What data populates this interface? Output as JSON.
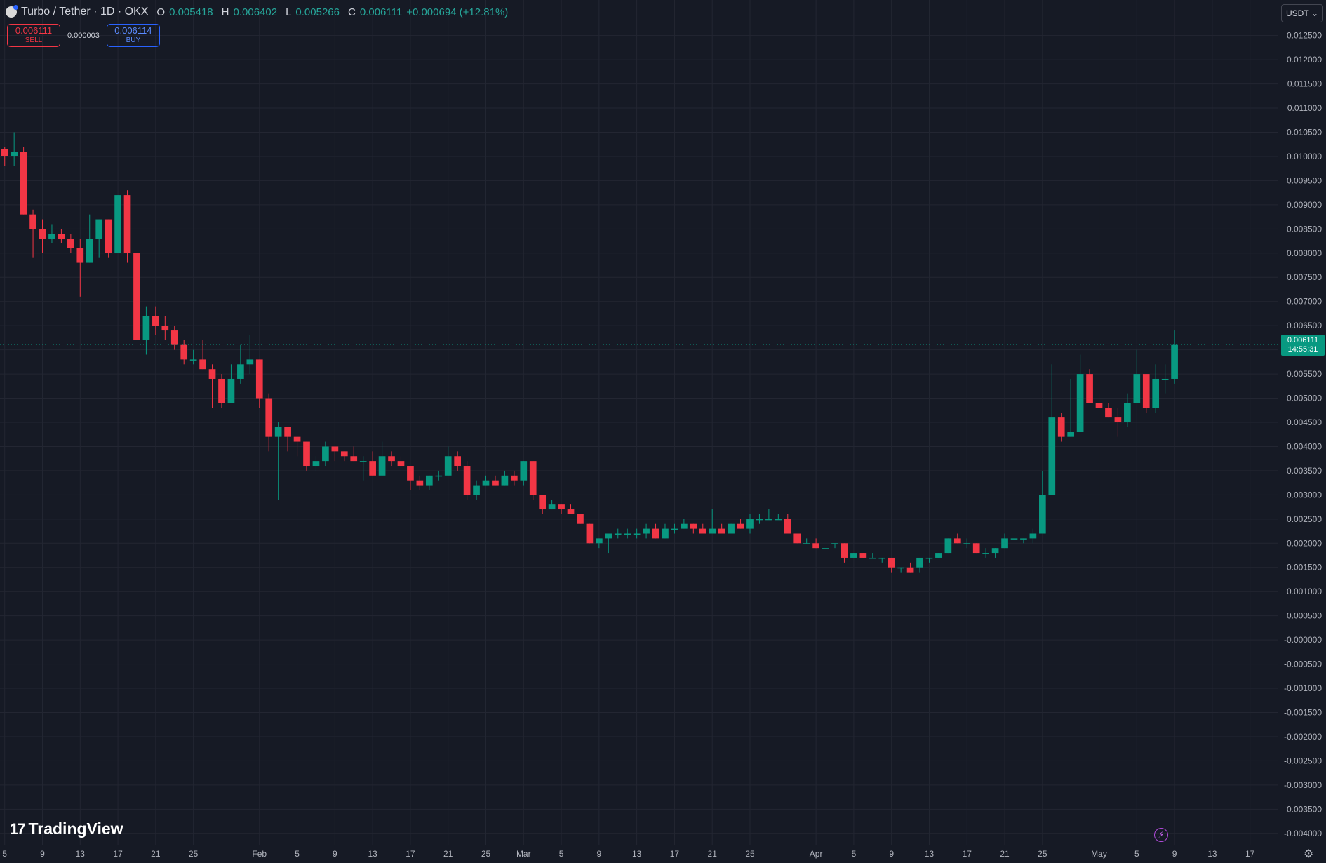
{
  "legend": {
    "symbol": "Turbo / Tether · 1D · OKX",
    "open_label": "O",
    "open": "0.005418",
    "high_label": "H",
    "high": "0.006402",
    "low_label": "L",
    "low": "0.005266",
    "close_label": "C",
    "close": "0.006111",
    "change": "+0.000694 (+12.81%)"
  },
  "trade": {
    "sell_price": "0.006111",
    "sell_label": "SELL",
    "spread": "0.000003",
    "buy_price": "0.006114",
    "buy_label": "BUY"
  },
  "currency": "USDT",
  "last_price": {
    "value": "0.006111",
    "countdown": "14:55:31"
  },
  "brand": "TradingView",
  "colors": {
    "up": "#089981",
    "down": "#f23645",
    "background": "#161a25",
    "grid": "#232632",
    "axis_text": "#b2b5be"
  },
  "chart_data": {
    "type": "candlestick",
    "y_ticks": [
      "0.012500",
      "0.012000",
      "0.011500",
      "0.011000",
      "0.010500",
      "0.010000",
      "0.009500",
      "0.009000",
      "0.008500",
      "0.008000",
      "0.007500",
      "0.007000",
      "0.006500",
      "0.006000",
      "0.005500",
      "0.005000",
      "0.004500",
      "0.004000",
      "0.003500",
      "0.003000",
      "0.002500",
      "0.002000",
      "0.001500",
      "0.001000",
      "0.000500",
      "-0.000000",
      "-0.000500",
      "-0.001000",
      "-0.001500",
      "-0.002000",
      "-0.002500",
      "-0.003000",
      "-0.003500",
      "-0.004000"
    ],
    "ylim": [
      -0.00425,
      0.0128
    ],
    "x_ticks": [
      {
        "label": "5",
        "day": 4
      },
      {
        "label": "9",
        "day": 8
      },
      {
        "label": "13",
        "day": 12
      },
      {
        "label": "17",
        "day": 16
      },
      {
        "label": "21",
        "day": 20
      },
      {
        "label": "25",
        "day": 24
      },
      {
        "label": "Feb",
        "day": 31
      },
      {
        "label": "5",
        "day": 35
      },
      {
        "label": "9",
        "day": 39
      },
      {
        "label": "13",
        "day": 43
      },
      {
        "label": "17",
        "day": 47
      },
      {
        "label": "21",
        "day": 51
      },
      {
        "label": "25",
        "day": 55
      },
      {
        "label": "Mar",
        "day": 59
      },
      {
        "label": "5",
        "day": 63
      },
      {
        "label": "9",
        "day": 67
      },
      {
        "label": "13",
        "day": 71
      },
      {
        "label": "17",
        "day": 75
      },
      {
        "label": "21",
        "day": 79
      },
      {
        "label": "25",
        "day": 83
      },
      {
        "label": "Apr",
        "day": 90
      },
      {
        "label": "5",
        "day": 94
      },
      {
        "label": "9",
        "day": 98
      },
      {
        "label": "13",
        "day": 102
      },
      {
        "label": "17",
        "day": 106
      },
      {
        "label": "21",
        "day": 110
      },
      {
        "label": "25",
        "day": 114
      },
      {
        "label": "May",
        "day": 120
      },
      {
        "label": "5",
        "day": 124
      },
      {
        "label": "9",
        "day": 128
      },
      {
        "label": "13",
        "day": 132
      },
      {
        "label": "17",
        "day": 136
      }
    ],
    "x_range": [
      3.5,
      139
    ],
    "start_day": 4,
    "candles": [
      [
        0.01015,
        0.0102,
        0.0098,
        0.01
      ],
      [
        0.01,
        0.0105,
        0.0098,
        0.0101
      ],
      [
        0.0101,
        0.0102,
        0.0088,
        0.0088
      ],
      [
        0.0088,
        0.0089,
        0.0079,
        0.0085
      ],
      [
        0.0085,
        0.0087,
        0.008,
        0.0083
      ],
      [
        0.0083,
        0.0086,
        0.0082,
        0.0084
      ],
      [
        0.0084,
        0.0085,
        0.0082,
        0.0083
      ],
      [
        0.0083,
        0.0084,
        0.008,
        0.0081
      ],
      [
        0.0081,
        0.0083,
        0.0071,
        0.0078
      ],
      [
        0.0078,
        0.0088,
        0.0078,
        0.0083
      ],
      [
        0.0083,
        0.0087,
        0.0079,
        0.0087
      ],
      [
        0.0087,
        0.0087,
        0.0079,
        0.008
      ],
      [
        0.008,
        0.0092,
        0.008,
        0.0092
      ],
      [
        0.0092,
        0.0093,
        0.0078,
        0.008
      ],
      [
        0.008,
        0.008,
        0.0062,
        0.0062
      ],
      [
        0.0062,
        0.0069,
        0.0059,
        0.0067
      ],
      [
        0.0067,
        0.0069,
        0.0063,
        0.0065
      ],
      [
        0.0065,
        0.0067,
        0.0062,
        0.0064
      ],
      [
        0.0064,
        0.0065,
        0.006,
        0.0061
      ],
      [
        0.0061,
        0.0062,
        0.0057,
        0.0058
      ],
      [
        0.0058,
        0.006,
        0.0057,
        0.0058
      ],
      [
        0.0058,
        0.0062,
        0.0056,
        0.0056
      ],
      [
        0.0056,
        0.0057,
        0.0048,
        0.0054
      ],
      [
        0.0054,
        0.0055,
        0.0048,
        0.0049
      ],
      [
        0.0049,
        0.0057,
        0.0049,
        0.0054
      ],
      [
        0.0054,
        0.0061,
        0.0053,
        0.0057
      ],
      [
        0.0057,
        0.0063,
        0.0055,
        0.0058
      ],
      [
        0.0058,
        0.0058,
        0.0048,
        0.005
      ],
      [
        0.005,
        0.0051,
        0.0039,
        0.0042
      ],
      [
        0.0042,
        0.0045,
        0.0029,
        0.0044
      ],
      [
        0.0044,
        0.0044,
        0.0039,
        0.0042
      ],
      [
        0.0042,
        0.0041,
        0.0038,
        0.0041
      ],
      [
        0.0041,
        0.004,
        0.0035,
        0.0036
      ],
      [
        0.0036,
        0.0038,
        0.0035,
        0.0037
      ],
      [
        0.0037,
        0.0041,
        0.0036,
        0.004
      ],
      [
        0.004,
        0.004,
        0.0037,
        0.0039
      ],
      [
        0.0039,
        0.0039,
        0.0037,
        0.0038
      ],
      [
        0.0038,
        0.004,
        0.0037,
        0.0037
      ],
      [
        0.0037,
        0.0038,
        0.0033,
        0.0037
      ],
      [
        0.0037,
        0.0039,
        0.0034,
        0.0034
      ],
      [
        0.0034,
        0.0041,
        0.0034,
        0.0038
      ],
      [
        0.0038,
        0.0039,
        0.0036,
        0.0037
      ],
      [
        0.0037,
        0.0038,
        0.0036,
        0.0036
      ],
      [
        0.0036,
        0.0036,
        0.0031,
        0.0033
      ],
      [
        0.0033,
        0.0034,
        0.0031,
        0.0032
      ],
      [
        0.0032,
        0.0034,
        0.0031,
        0.0034
      ],
      [
        0.0034,
        0.0035,
        0.0033,
        0.0034
      ],
      [
        0.0034,
        0.004,
        0.0034,
        0.0038
      ],
      [
        0.0038,
        0.0039,
        0.0035,
        0.0036
      ],
      [
        0.0036,
        0.0037,
        0.0029,
        0.003
      ],
      [
        0.003,
        0.0033,
        0.0029,
        0.0032
      ],
      [
        0.0032,
        0.0034,
        0.0032,
        0.0033
      ],
      [
        0.0033,
        0.0034,
        0.0032,
        0.0032
      ],
      [
        0.0032,
        0.0035,
        0.0032,
        0.0034
      ],
      [
        0.0034,
        0.0035,
        0.0032,
        0.0033
      ],
      [
        0.0033,
        0.0037,
        0.0032,
        0.0037
      ],
      [
        0.0037,
        0.0037,
        0.0029,
        0.003
      ],
      [
        0.003,
        0.003,
        0.0026,
        0.0027
      ],
      [
        0.0027,
        0.0029,
        0.0027,
        0.0028
      ],
      [
        0.0028,
        0.0028,
        0.0026,
        0.0027
      ],
      [
        0.0027,
        0.0028,
        0.0026,
        0.0026
      ],
      [
        0.0026,
        0.0026,
        0.0024,
        0.0024
      ],
      [
        0.0024,
        0.0024,
        0.0021,
        0.002
      ],
      [
        0.002,
        0.0021,
        0.0019,
        0.0021
      ],
      [
        0.0021,
        0.0022,
        0.0018,
        0.0022
      ],
      [
        0.0022,
        0.0023,
        0.0021,
        0.0022
      ],
      [
        0.0022,
        0.0023,
        0.0021,
        0.0022
      ],
      [
        0.0022,
        0.0023,
        0.0021,
        0.0022
      ],
      [
        0.0022,
        0.0024,
        0.0021,
        0.0023
      ],
      [
        0.0023,
        0.0024,
        0.0021,
        0.0021
      ],
      [
        0.0021,
        0.0024,
        0.0021,
        0.0023
      ],
      [
        0.0023,
        0.0024,
        0.0022,
        0.0023
      ],
      [
        0.0023,
        0.0025,
        0.0023,
        0.0024
      ],
      [
        0.0024,
        0.0024,
        0.0022,
        0.0023
      ],
      [
        0.0023,
        0.0024,
        0.0022,
        0.0022
      ],
      [
        0.0022,
        0.0027,
        0.0022,
        0.0023
      ],
      [
        0.0023,
        0.0024,
        0.0022,
        0.0022
      ],
      [
        0.0022,
        0.0024,
        0.0022,
        0.0024
      ],
      [
        0.0024,
        0.0025,
        0.0023,
        0.0023
      ],
      [
        0.0023,
        0.0026,
        0.0022,
        0.0025
      ],
      [
        0.0025,
        0.0026,
        0.0024,
        0.0025
      ],
      [
        0.0025,
        0.0027,
        0.0025,
        0.0025
      ],
      [
        0.0025,
        0.0026,
        0.0025,
        0.0025
      ],
      [
        0.0025,
        0.0026,
        0.0022,
        0.0022
      ],
      [
        0.0022,
        0.0022,
        0.002,
        0.002
      ],
      [
        0.002,
        0.0021,
        0.002,
        0.002
      ],
      [
        0.002,
        0.0021,
        0.0019,
        0.0019
      ],
      [
        0.0019,
        0.0019,
        0.0019,
        0.0019
      ],
      [
        0.002,
        0.002,
        0.0019,
        0.002
      ],
      [
        0.002,
        0.002,
        0.0016,
        0.0017
      ],
      [
        0.0017,
        0.0018,
        0.0017,
        0.0018
      ],
      [
        0.0018,
        0.0018,
        0.0017,
        0.0017
      ],
      [
        0.0017,
        0.0018,
        0.0017,
        0.0017
      ],
      [
        0.0017,
        0.0017,
        0.0016,
        0.0017
      ],
      [
        0.0017,
        0.0017,
        0.0014,
        0.0015
      ],
      [
        0.0015,
        0.0015,
        0.0014,
        0.0015
      ],
      [
        0.0015,
        0.0016,
        0.0014,
        0.0014
      ],
      [
        0.0015,
        0.0017,
        0.0014,
        0.0017
      ],
      [
        0.0017,
        0.0017,
        0.0016,
        0.0017
      ],
      [
        0.0017,
        0.0018,
        0.0017,
        0.0018
      ],
      [
        0.0018,
        0.0021,
        0.0018,
        0.0021
      ],
      [
        0.0021,
        0.0022,
        0.002,
        0.002
      ],
      [
        0.002,
        0.0021,
        0.0019,
        0.002
      ],
      [
        0.002,
        0.002,
        0.0018,
        0.0018
      ],
      [
        0.0018,
        0.0019,
        0.0017,
        0.0018
      ],
      [
        0.0018,
        0.0019,
        0.0017,
        0.0019
      ],
      [
        0.0019,
        0.0022,
        0.0019,
        0.0021
      ],
      [
        0.0021,
        0.0021,
        0.002,
        0.0021
      ],
      [
        0.0021,
        0.0021,
        0.002,
        0.0021
      ],
      [
        0.0021,
        0.0023,
        0.002,
        0.0022
      ],
      [
        0.0022,
        0.0035,
        0.0022,
        0.003
      ],
      [
        0.003,
        0.0057,
        0.003,
        0.0046
      ],
      [
        0.0046,
        0.0047,
        0.0041,
        0.0042
      ],
      [
        0.0042,
        0.0054,
        0.0042,
        0.0043
      ],
      [
        0.0043,
        0.0059,
        0.0043,
        0.0055
      ],
      [
        0.0055,
        0.0056,
        0.0049,
        0.0049
      ],
      [
        0.0049,
        0.0051,
        0.0048,
        0.0048
      ],
      [
        0.0048,
        0.0049,
        0.0046,
        0.0046
      ],
      [
        0.0046,
        0.0048,
        0.0042,
        0.0045
      ],
      [
        0.0045,
        0.0051,
        0.0044,
        0.0049
      ],
      [
        0.0049,
        0.006,
        0.0049,
        0.0055
      ],
      [
        0.0055,
        0.0055,
        0.0047,
        0.0048
      ],
      [
        0.0048,
        0.0057,
        0.0047,
        0.0054
      ],
      [
        0.0054,
        0.0057,
        0.0051,
        0.0054
      ],
      [
        0.0054,
        0.0064,
        0.0053,
        0.0061
      ]
    ]
  }
}
